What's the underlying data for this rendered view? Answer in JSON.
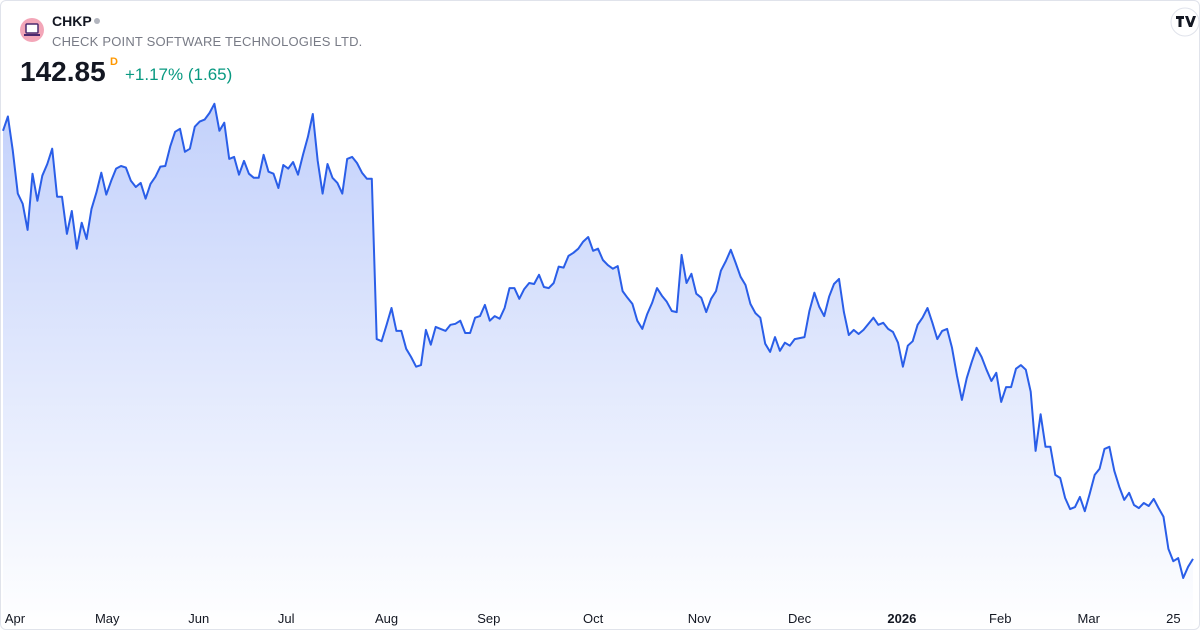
{
  "header": {
    "symbol": "CHKP",
    "name": "CHECK POINT SOFTWARE TECHNOLOGIES LTD.",
    "price": "142.85",
    "price_unit": "D",
    "change": "+1.17% (1.65)"
  },
  "chart_data": {
    "type": "area",
    "color": "#2a5ee8",
    "values": [
      226.7,
      229.5,
      222.8,
      214.4,
      212.4,
      207.3,
      218.3,
      213.0,
      217.9,
      220.2,
      223.2,
      213.8,
      213.8,
      206.5,
      211.0,
      203.6,
      208.7,
      205.5,
      211.4,
      214.6,
      218.5,
      214.2,
      216.9,
      219.3,
      219.8,
      219.5,
      216.9,
      215.7,
      216.5,
      213.4,
      216.3,
      217.7,
      219.7,
      219.8,
      223.6,
      226.5,
      227.1,
      222.6,
      223.2,
      227.5,
      228.5,
      228.9,
      230.2,
      232.0,
      226.7,
      228.3,
      221.2,
      221.6,
      218.1,
      220.8,
      218.3,
      217.5,
      217.5,
      222.0,
      218.7,
      218.3,
      215.5,
      220.0,
      219.3,
      220.6,
      218.1,
      222.0,
      225.5,
      230.0,
      220.8,
      214.4,
      220.2,
      217.5,
      216.5,
      214.4,
      221.2,
      221.6,
      220.4,
      218.5,
      217.3,
      217.3,
      185.9,
      185.5,
      188.7,
      192.0,
      187.5,
      187.5,
      184.0,
      182.4,
      180.5,
      180.8,
      187.7,
      184.8,
      188.3,
      187.9,
      187.5,
      188.7,
      188.9,
      189.5,
      187.1,
      187.1,
      190.1,
      190.4,
      192.6,
      189.5,
      190.4,
      189.9,
      192.0,
      195.9,
      195.9,
      193.8,
      195.7,
      196.9,
      196.7,
      198.5,
      196.1,
      195.9,
      196.9,
      200.1,
      199.9,
      202.2,
      202.8,
      203.6,
      205.0,
      205.9,
      203.2,
      203.6,
      201.4,
      200.4,
      199.7,
      200.2,
      195.3,
      194.0,
      192.8,
      189.5,
      187.9,
      190.8,
      193.0,
      195.9,
      194.4,
      193.2,
      191.4,
      191.2,
      202.4,
      196.9,
      198.7,
      194.8,
      194.0,
      191.2,
      193.8,
      195.3,
      199.3,
      201.2,
      203.4,
      200.8,
      198.1,
      196.5,
      192.8,
      191.0,
      190.1,
      185.0,
      183.4,
      186.3,
      183.6,
      185.2,
      184.6,
      185.9,
      186.1,
      186.3,
      191.4,
      195.0,
      192.2,
      190.4,
      194.2,
      196.7,
      197.7,
      191.2,
      186.7,
      187.7,
      186.9,
      187.7,
      188.9,
      190.1,
      188.7,
      189.1,
      187.9,
      187.3,
      185.2,
      180.5,
      184.6,
      185.5,
      188.7,
      190.1,
      192.0,
      189.1,
      185.9,
      187.5,
      187.9,
      184.2,
      178.7,
      174.0,
      178.3,
      181.4,
      184.2,
      182.4,
      179.9,
      177.7,
      179.3,
      173.6,
      176.5,
      176.5,
      180.1,
      180.8,
      179.9,
      175.6,
      164.0,
      171.2,
      164.8,
      164.8,
      159.3,
      158.7,
      154.8,
      152.6,
      153.0,
      155.0,
      152.2,
      155.6,
      159.3,
      160.5,
      164.4,
      164.8,
      160.1,
      157.0,
      154.4,
      155.8,
      153.4,
      152.8,
      153.8,
      153.2,
      154.6,
      152.8,
      151.1,
      144.8,
      142.4,
      143.0,
      139.1,
      141.3,
      142.85
    ],
    "xlim": [
      0,
      242
    ],
    "ylim": [
      134.6,
      234.5
    ],
    "xticks": [
      {
        "value": 1.3,
        "label": "Apr"
      },
      {
        "value": 21.2,
        "label": "May"
      },
      {
        "value": 39.8,
        "label": "Jun"
      },
      {
        "value": 57.6,
        "label": "Jul"
      },
      {
        "value": 78,
        "label": "Aug"
      },
      {
        "value": 98.8,
        "label": "Sep"
      },
      {
        "value": 120,
        "label": "Oct"
      },
      {
        "value": 141.6,
        "label": "Nov"
      },
      {
        "value": 162,
        "label": "Dec"
      },
      {
        "value": 182.8,
        "label": "2026"
      },
      {
        "value": 202.8,
        "label": "Feb"
      },
      {
        "value": 220.8,
        "label": "Mar"
      },
      {
        "value": 238,
        "label": "25"
      }
    ]
  }
}
